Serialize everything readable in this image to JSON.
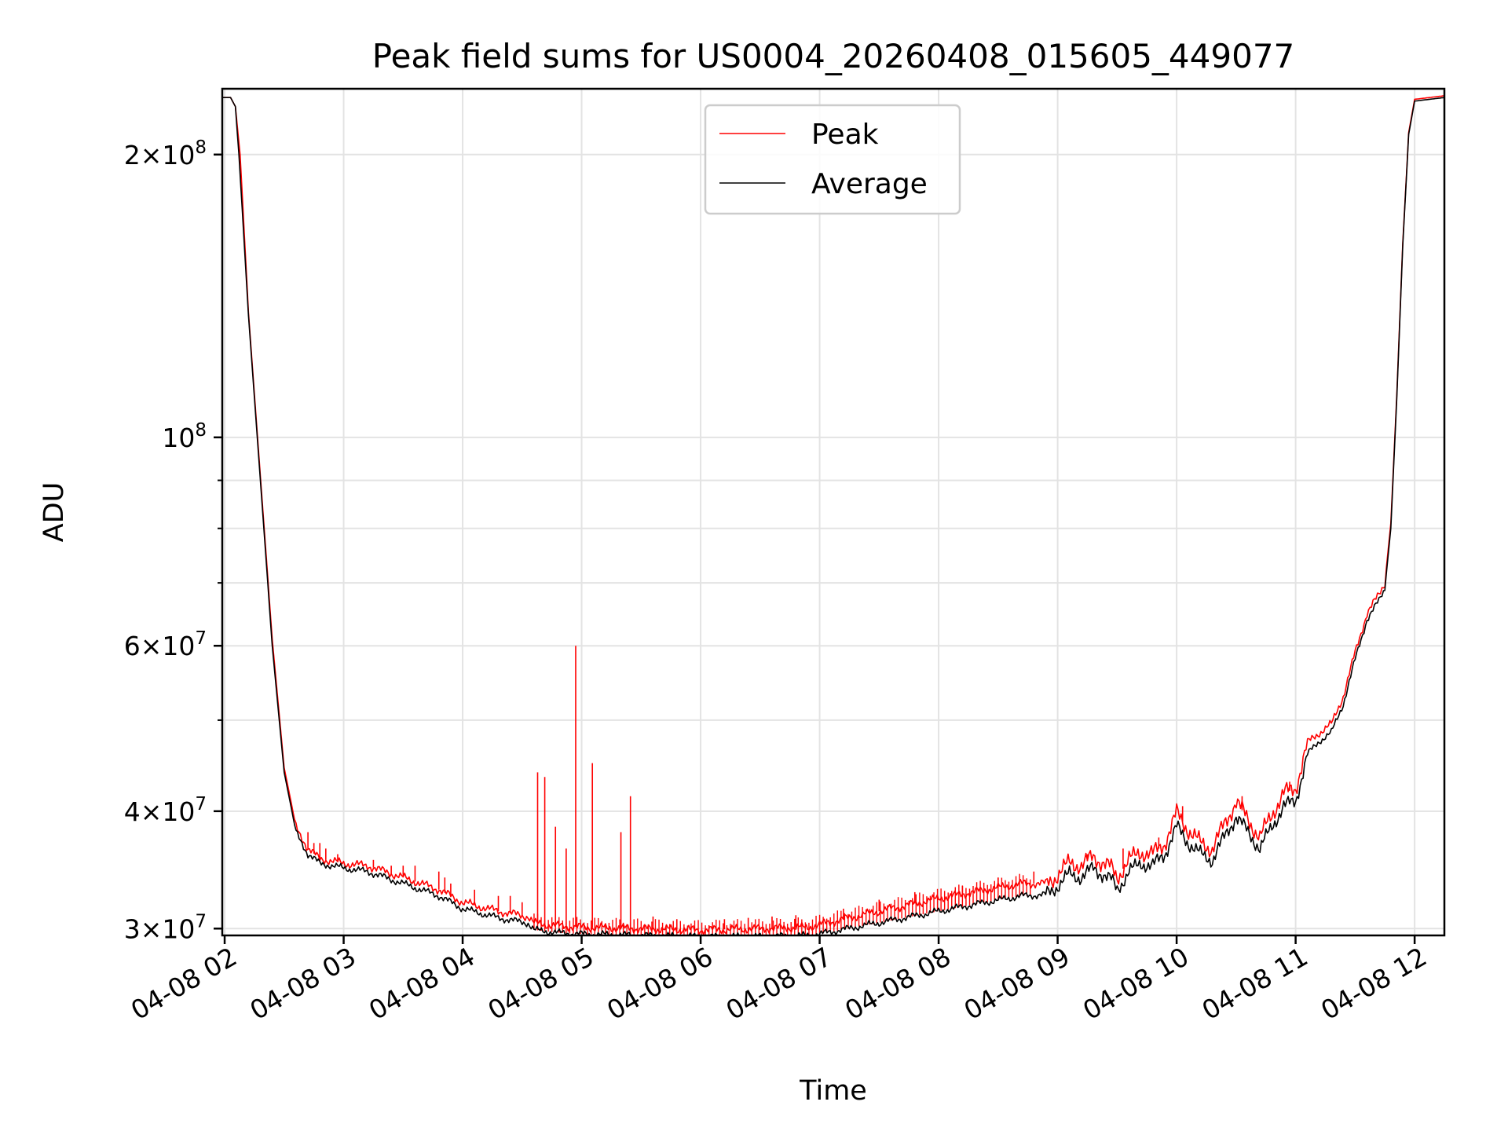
{
  "chart_data": {
    "type": "line",
    "title": "Peak field sums for US0004_20260408_015605_449077",
    "xlabel": "Time",
    "ylabel": "ADU",
    "yscale": "log",
    "xlim": [
      1.98,
      12.25
    ],
    "ylim": [
      29500000,
      235000000
    ],
    "x_ticks": [
      {
        "value": 2,
        "label": "04-08 02"
      },
      {
        "value": 3,
        "label": "04-08 03"
      },
      {
        "value": 4,
        "label": "04-08 04"
      },
      {
        "value": 5,
        "label": "04-08 05"
      },
      {
        "value": 6,
        "label": "04-08 06"
      },
      {
        "value": 7,
        "label": "04-08 07"
      },
      {
        "value": 8,
        "label": "04-08 08"
      },
      {
        "value": 9,
        "label": "04-08 09"
      },
      {
        "value": 10,
        "label": "04-08 10"
      },
      {
        "value": 11,
        "label": "04-08 11"
      },
      {
        "value": 12,
        "label": "04-08 12"
      }
    ],
    "y_major_ticks": [
      {
        "value": 30000000,
        "base": "3×10",
        "exp": "7"
      },
      {
        "value": 40000000,
        "base": "4×10",
        "exp": "7"
      },
      {
        "value": 60000000,
        "base": "6×10",
        "exp": "7"
      },
      {
        "value": 100000000,
        "base": "10",
        "exp": "8"
      },
      {
        "value": 200000000,
        "base": "2×10",
        "exp": "8"
      }
    ],
    "y_grid_values": [
      30000000,
      40000000,
      50000000,
      60000000,
      70000000,
      80000000,
      90000000,
      100000000,
      200000000
    ],
    "y_minor_values": [
      50000000,
      70000000,
      80000000,
      90000000
    ],
    "legend": {
      "placement": "top-center",
      "entries": [
        {
          "name": "Peak",
          "color": "#ff0000"
        },
        {
          "name": "Average",
          "color": "#000000"
        }
      ]
    },
    "series": [
      {
        "name": "Average",
        "color": "#000000",
        "points": [
          [
            1.98,
            230000000
          ],
          [
            2.05,
            230000000
          ],
          [
            2.09,
            225000000
          ],
          [
            2.12,
            200000000
          ],
          [
            2.2,
            135000000
          ],
          [
            2.3,
            90000000
          ],
          [
            2.4,
            60000000
          ],
          [
            2.5,
            44000000
          ],
          [
            2.6,
            38000000
          ],
          [
            2.7,
            36000000
          ],
          [
            2.8,
            35200000
          ],
          [
            3.0,
            34800000
          ],
          [
            3.2,
            34500000
          ],
          [
            3.5,
            33500000
          ],
          [
            3.8,
            32500000
          ],
          [
            4.0,
            31500000
          ],
          [
            4.3,
            30800000
          ],
          [
            4.55,
            30400000
          ],
          [
            4.6,
            29900000
          ],
          [
            4.8,
            29700000
          ],
          [
            5.0,
            29600000
          ],
          [
            5.5,
            29500000
          ],
          [
            6.0,
            29400000
          ],
          [
            6.5,
            29400000
          ],
          [
            6.9,
            29500000
          ],
          [
            7.0,
            29600000
          ],
          [
            7.3,
            30100000
          ],
          [
            7.6,
            30600000
          ],
          [
            8.0,
            31300000
          ],
          [
            8.4,
            32000000
          ],
          [
            8.7,
            32500000
          ],
          [
            8.9,
            32600000
          ],
          [
            9.0,
            33300000
          ],
          [
            9.1,
            34300000
          ],
          [
            9.2,
            34000000
          ],
          [
            9.3,
            34800000
          ],
          [
            9.45,
            33800000
          ],
          [
            9.5,
            33000000
          ],
          [
            9.6,
            34500000
          ],
          [
            9.7,
            35200000
          ],
          [
            9.8,
            35000000
          ],
          [
            9.9,
            36000000
          ],
          [
            10.0,
            38500000
          ],
          [
            10.1,
            37000000
          ],
          [
            10.2,
            36000000
          ],
          [
            10.3,
            35500000
          ],
          [
            10.4,
            37500000
          ],
          [
            10.5,
            39500000
          ],
          [
            10.6,
            38000000
          ],
          [
            10.7,
            36500000
          ],
          [
            10.8,
            38500000
          ],
          [
            10.9,
            40500000
          ],
          [
            11.0,
            41000000
          ],
          [
            11.1,
            46000000
          ],
          [
            11.2,
            47500000
          ],
          [
            11.3,
            48500000
          ],
          [
            11.4,
            52000000
          ],
          [
            11.5,
            58000000
          ],
          [
            11.6,
            64000000
          ],
          [
            11.7,
            67000000
          ],
          [
            11.75,
            69000000
          ],
          [
            11.8,
            80000000
          ],
          [
            11.85,
            110000000
          ],
          [
            11.9,
            160000000
          ],
          [
            11.95,
            210000000
          ],
          [
            12.0,
            228000000
          ],
          [
            12.25,
            230000000
          ]
        ]
      },
      {
        "name": "Peak",
        "color": "#ff0000",
        "points": [
          [
            1.98,
            230000000
          ],
          [
            2.05,
            230000000
          ],
          [
            2.09,
            225000000
          ],
          [
            2.13,
            200000000
          ],
          [
            2.2,
            136000000
          ],
          [
            2.3,
            91000000
          ],
          [
            2.4,
            61000000
          ],
          [
            2.5,
            44500000
          ],
          [
            2.6,
            38500000
          ],
          [
            2.7,
            36500000
          ],
          [
            2.8,
            35600000
          ],
          [
            3.0,
            35200000
          ],
          [
            3.2,
            35000000
          ],
          [
            3.5,
            34000000
          ],
          [
            3.8,
            33000000
          ],
          [
            4.0,
            32000000
          ],
          [
            4.3,
            31300000
          ],
          [
            4.55,
            30900000
          ],
          [
            4.6,
            30400000
          ],
          [
            4.8,
            30200000
          ],
          [
            5.0,
            30100000
          ],
          [
            5.5,
            30000000
          ],
          [
            6.0,
            29900000
          ],
          [
            6.5,
            30000000
          ],
          [
            6.9,
            30100000
          ],
          [
            7.0,
            30300000
          ],
          [
            7.3,
            30900000
          ],
          [
            7.6,
            31500000
          ],
          [
            8.0,
            32300000
          ],
          [
            8.4,
            33000000
          ],
          [
            8.7,
            33500000
          ],
          [
            8.9,
            33500000
          ],
          [
            9.0,
            34200000
          ],
          [
            9.1,
            35300000
          ],
          [
            9.2,
            35000000
          ],
          [
            9.3,
            35800000
          ],
          [
            9.45,
            34800000
          ],
          [
            9.5,
            34000000
          ],
          [
            9.6,
            35500000
          ],
          [
            9.7,
            36200000
          ],
          [
            9.8,
            36000000
          ],
          [
            9.9,
            37000000
          ],
          [
            10.0,
            39800000
          ],
          [
            10.1,
            38200000
          ],
          [
            10.2,
            37000000
          ],
          [
            10.3,
            36500000
          ],
          [
            10.4,
            38700000
          ],
          [
            10.5,
            41000000
          ],
          [
            10.6,
            39200000
          ],
          [
            10.7,
            37500000
          ],
          [
            10.8,
            39700000
          ],
          [
            10.9,
            41800000
          ],
          [
            11.0,
            42300000
          ],
          [
            11.1,
            47300000
          ],
          [
            11.2,
            48500000
          ],
          [
            11.3,
            49500000
          ],
          [
            11.4,
            53000000
          ],
          [
            11.5,
            59000000
          ],
          [
            11.6,
            65000000
          ],
          [
            11.7,
            68000000
          ],
          [
            11.75,
            70000000
          ],
          [
            11.8,
            81000000
          ],
          [
            11.85,
            111000000
          ],
          [
            11.9,
            161000000
          ],
          [
            11.95,
            211000000
          ],
          [
            12.0,
            229000000
          ],
          [
            12.25,
            231000000
          ]
        ],
        "spikes": [
          [
            2.7,
            38000000
          ],
          [
            2.75,
            37000000
          ],
          [
            2.8,
            37000000
          ],
          [
            2.85,
            36500000
          ],
          [
            2.95,
            36000000
          ],
          [
            3.25,
            35500000
          ],
          [
            3.4,
            35000000
          ],
          [
            3.5,
            35000000
          ],
          [
            3.6,
            35000000
          ],
          [
            3.8,
            34500000
          ],
          [
            3.85,
            34000000
          ],
          [
            3.9,
            33500000
          ],
          [
            4.1,
            33000000
          ],
          [
            4.3,
            32500000
          ],
          [
            4.4,
            32500000
          ],
          [
            4.5,
            32000000
          ],
          [
            4.63,
            44000000
          ],
          [
            4.69,
            43500000
          ],
          [
            4.78,
            38500000
          ],
          [
            4.87,
            36500000
          ],
          [
            4.95,
            60000000
          ],
          [
            5.09,
            45000000
          ],
          [
            5.33,
            38000000
          ],
          [
            5.41,
            41500000
          ],
          [
            5.6,
            30900000
          ],
          [
            5.8,
            30700000
          ],
          [
            6.2,
            30700000
          ],
          [
            6.4,
            30800000
          ],
          [
            6.6,
            30900000
          ],
          [
            6.8,
            31000000
          ],
          [
            7.2,
            31500000
          ],
          [
            7.5,
            32200000
          ],
          [
            7.8,
            32800000
          ],
          [
            8.2,
            33300000
          ],
          [
            8.5,
            34000000
          ],
          [
            8.8,
            34500000
          ],
          [
            9.25,
            36000000
          ],
          [
            9.55,
            36500000
          ],
          [
            9.85,
            37500000
          ],
          [
            10.05,
            40500000
          ],
          [
            10.55,
            41500000
          ],
          [
            10.95,
            43000000
          ],
          [
            11.15,
            48000000
          ]
        ]
      }
    ]
  }
}
